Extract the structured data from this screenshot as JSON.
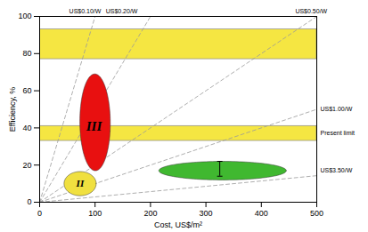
{
  "chart_data": {
    "type": "region",
    "xlabel": "Cost, US$/m²",
    "ylabel": "Efficiency, %",
    "xlim": [
      0,
      500
    ],
    "ylim": [
      0,
      100
    ],
    "xticks": [
      0,
      100,
      200,
      300,
      400,
      500
    ],
    "yticks": [
      0,
      20,
      40,
      60,
      80,
      100
    ],
    "grid": false,
    "bands": [
      {
        "y": [
          77,
          93
        ],
        "color": "#f5e642"
      },
      {
        "y": [
          33,
          41
        ],
        "color": "#f5e642"
      }
    ],
    "lines": {
      "color": "#999999",
      "line_style": "dashed",
      "segments": [
        {
          "x": [
            0,
            100
          ],
          "y": [
            0,
            100
          ]
        },
        {
          "x": [
            0,
            200
          ],
          "y": [
            0,
            100
          ]
        },
        {
          "x": [
            0,
            500
          ],
          "y": [
            0,
            100
          ]
        },
        {
          "x": [
            0,
            500
          ],
          "y": [
            0,
            50
          ]
        },
        {
          "x": [
            0,
            500
          ],
          "y": [
            0,
            14.285
          ]
        }
      ]
    },
    "ellipses": [
      {
        "cx": 330,
        "cy": 17,
        "width": 230,
        "height": 10,
        "angle": 0,
        "color": "#40b830"
      },
      {
        "cx": 100,
        "cy": 43,
        "width": 55,
        "height": 52,
        "angle": -10,
        "color": "#e81010"
      },
      {
        "cx": 73,
        "cy": 10,
        "width": 58,
        "height": 13,
        "angle": 0,
        "color": "#f0e040"
      }
    ],
    "annotations": [
      {
        "text": "III",
        "x": 98,
        "y": 41
      },
      {
        "text": "II",
        "x": 73,
        "y": 10
      }
    ],
    "errorbars": [
      {
        "x": 325,
        "y": 18,
        "yerr": 4
      }
    ],
    "top_labels": [
      {
        "text": "US$0.10/W",
        "x": 82
      },
      {
        "text": "US$0.20/W",
        "x": 148
      },
      {
        "text": "US$0.50/W",
        "x": 490
      }
    ],
    "right_labels": [
      {
        "text": "US$1.00/W",
        "y": 50
      },
      {
        "text": "Present limit",
        "y": 37
      },
      {
        "text": "US$3.50/W",
        "y": 17
      }
    ]
  }
}
